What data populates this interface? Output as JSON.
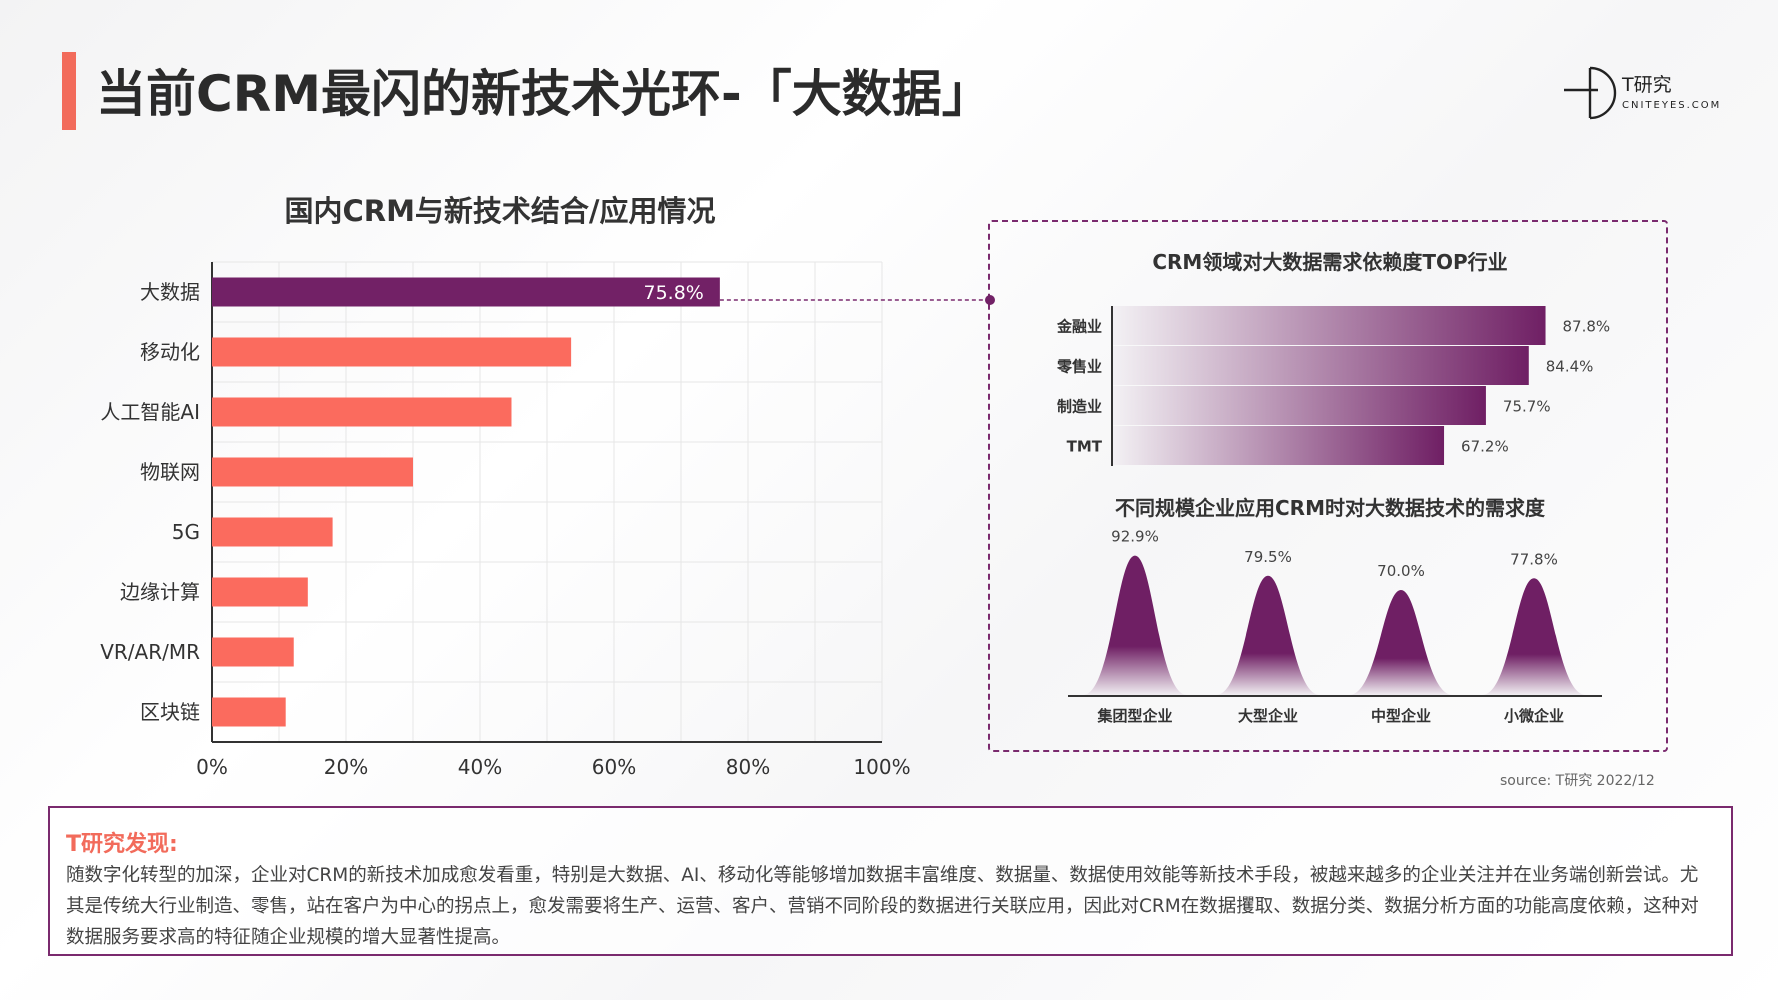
{
  "header": {
    "title": "当前CRM最闪的新技术光环-「大数据」",
    "accent_color": "#f26b5b"
  },
  "logo": {
    "name": "T研究",
    "domain": "CNITEYES.COM"
  },
  "chart_data": [
    {
      "type": "bar",
      "orientation": "horizontal",
      "title": "国内CRM与新技术结合/应用情况",
      "categories": [
        "大数据",
        "移动化",
        "人工智能AI",
        "物联网",
        "5G",
        "边缘计算",
        "VR/AR/MR",
        "区块链"
      ],
      "values": [
        75.8,
        53.6,
        44.7,
        30.0,
        18.0,
        14.3,
        12.2,
        11.0
      ],
      "value_labels": [
        "75.8%",
        "",
        "",
        "",
        "",
        "",
        "",
        ""
      ],
      "xlim": [
        0,
        100
      ],
      "xticks": [
        "0%",
        "20%",
        "40%",
        "60%",
        "80%",
        "100%"
      ],
      "grid": true,
      "colors": {
        "highlight": "#722166",
        "default": "#fb6b5e"
      }
    },
    {
      "type": "bar",
      "orientation": "horizontal",
      "title": "CRM领域对大数据需求依赖度TOP行业",
      "categories": [
        "金融业",
        "零售业",
        "制造业",
        "TMT"
      ],
      "values": [
        87.8,
        84.4,
        75.7,
        67.2
      ],
      "value_labels": [
        "87.8%",
        "84.4%",
        "75.7%",
        "67.2%"
      ],
      "xlim": [
        0,
        95
      ],
      "colors": {
        "gradient_start": "#f3f1f4",
        "gradient_end": "#6f1f64"
      }
    },
    {
      "type": "area",
      "title": "不同规模企业应用CRM时对大数据技术的需求度",
      "categories": [
        "集团型企业",
        "大型企业",
        "中型企业",
        "小微企业"
      ],
      "values": [
        92.9,
        79.5,
        70.0,
        77.8
      ],
      "value_labels": [
        "92.9%",
        "79.5%",
        "70.0%",
        "77.8%"
      ],
      "ylim": [
        0,
        100
      ],
      "colors": {
        "fill": "#6f1f64"
      }
    }
  ],
  "source": "source:   T研究 2022/12",
  "finding": {
    "title": "T研究发现:",
    "text": "随数字化转型的加深，企业对CRM的新技术加成愈发看重，特别是大数据、AI、移动化等能够增加数据丰富维度、数据量、数据使用效能等新技术手段，被越来越多的企业关注并在业务端创新尝试。尤其是传统大行业制造、零售，站在客户为中心的拐点上，愈发需要将生产、运营、客户、营销不同阶段的数据进行关联应用，因此对CRM在数据攫取、数据分类、数据分析方面的功能高度依赖，这种对数据服务要求高的特征随企业规模的增大显著性提高。"
  }
}
